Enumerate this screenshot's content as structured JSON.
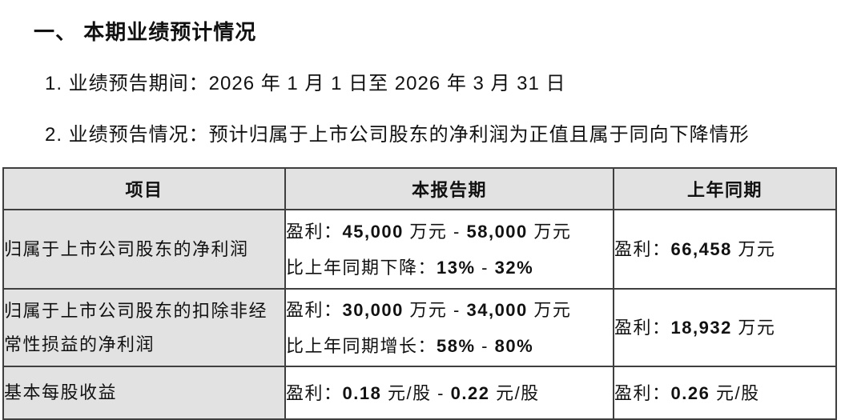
{
  "page": {
    "title": "一、 本期业绩预计情况",
    "items": [
      "1. 业绩预告期间：2026 年 1 月 1 日至 2026 年 3 月 31 日",
      "2. 业绩预告情况：预计归属于上市公司股东的净利润为正值且属于同向下降情形"
    ]
  },
  "table": {
    "columns": [
      "项目",
      "本报告期",
      "上年同期"
    ],
    "rows": [
      {
        "item": [
          "归属于上市公司股东的净利润"
        ],
        "current": [
          "盈利：45,000 万元 - 58,000 万元",
          "比上年同期下降：13% - 32%"
        ],
        "prior": [
          "盈利：66,458 万元"
        ]
      },
      {
        "item": [
          "归属于上市公司股东的扣除非经常性损益的净利润"
        ],
        "current": [
          "盈利：30,000 万元 - 34,000 万元",
          "比上年同期增长：58% - 80%"
        ],
        "prior": [
          "盈利：18,932 万元"
        ]
      },
      {
        "item": [
          "基本每股收益"
        ],
        "current": [
          "盈利：0.18 元/股 - 0.22 元/股"
        ],
        "prior": [
          "盈利：0.26 元/股"
        ]
      }
    ]
  },
  "colors": {
    "header_bg": "#e2e2e2",
    "border": "#3f3f3f",
    "text": "#111111"
  }
}
